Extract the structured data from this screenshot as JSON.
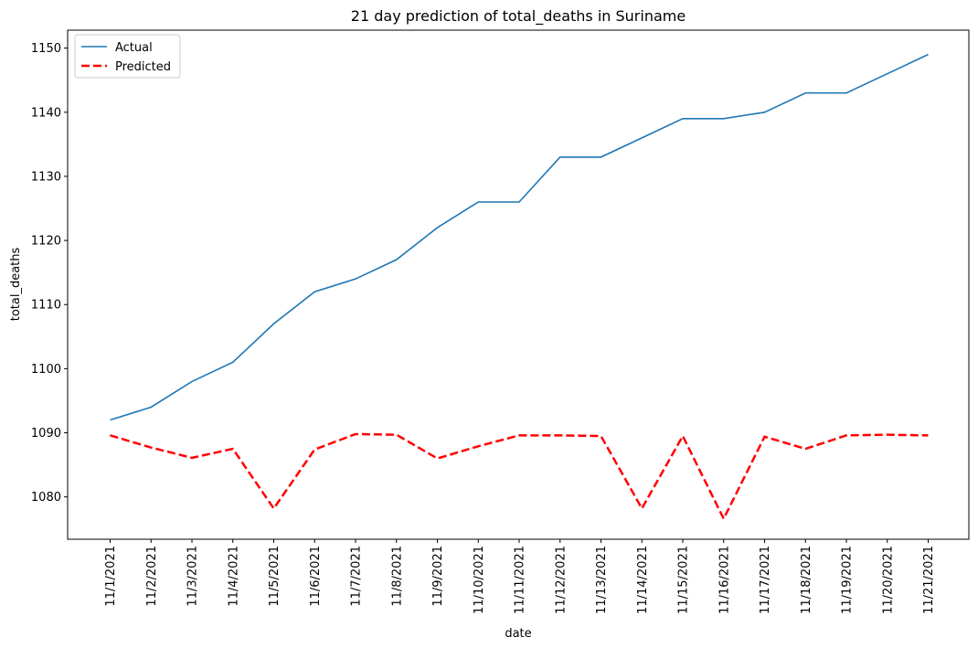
{
  "chart_data": {
    "type": "line",
    "title": "21 day prediction of total_deaths in Suriname",
    "xlabel": "date",
    "ylabel": "total_deaths",
    "x": [
      "11/1/2021",
      "11/2/2021",
      "11/3/2021",
      "11/4/2021",
      "11/5/2021",
      "11/6/2021",
      "11/7/2021",
      "11/8/2021",
      "11/9/2021",
      "11/10/2021",
      "11/11/2021",
      "11/12/2021",
      "11/13/2021",
      "11/14/2021",
      "11/15/2021",
      "11/16/2021",
      "11/17/2021",
      "11/18/2021",
      "11/19/2021",
      "11/20/2021",
      "11/21/2021"
    ],
    "ylim": [
      1073.4,
      1152.8
    ],
    "yticks": [
      1080,
      1090,
      1100,
      1110,
      1120,
      1130,
      1140,
      1150
    ],
    "grid": false,
    "legend_position": "top-left",
    "series": [
      {
        "name": "Actual",
        "color": "#1f77b4",
        "style": "solid",
        "values": [
          1092,
          1094,
          1098,
          1101,
          1107,
          1112,
          1114,
          1117,
          1122,
          1126,
          1126,
          1133,
          1133,
          1136,
          1139,
          1139,
          1140,
          1143,
          1143,
          1146,
          1149
        ]
      },
      {
        "name": "Predicted",
        "color": "#ff0000",
        "style": "dashed",
        "values": [
          1089.6,
          1087.7,
          1086.1,
          1087.5,
          1078.2,
          1087.4,
          1089.8,
          1089.7,
          1086.0,
          1087.9,
          1089.6,
          1089.6,
          1089.5,
          1078.2,
          1089.5,
          1076.6,
          1089.4,
          1087.5,
          1089.6,
          1089.7,
          1089.6
        ]
      }
    ]
  }
}
